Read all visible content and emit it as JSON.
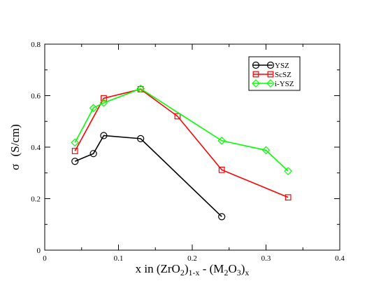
{
  "chart_data": {
    "type": "line",
    "title": "",
    "xlabel": {
      "main": "x in (ZrO",
      "sub1": "2",
      "mid1": ")",
      "sub2": "1-x",
      "mid2": " - (M",
      "sub3": "2",
      "mid3": "O",
      "sub4": "3",
      "mid4": ")",
      "sub5": "x"
    },
    "ylabel": {
      "symbol": "σ",
      "unit": "(S/cm)"
    },
    "xlim": [
      0,
      0.4
    ],
    "ylim": [
      0,
      0.8
    ],
    "xticks": [
      "0",
      "0.1",
      "0.2",
      "0.3",
      "0.4"
    ],
    "yticks": [
      "0",
      "0.2",
      "0.4",
      "0.6",
      "0.8"
    ],
    "grid": false,
    "legend_position": "top-right",
    "series": [
      {
        "name": "YSZ",
        "color": "#000000",
        "marker": "circle",
        "x": [
          0.041,
          0.066,
          0.08,
          0.13,
          0.24
        ],
        "y": [
          0.345,
          0.375,
          0.445,
          0.433,
          0.13
        ]
      },
      {
        "name": "ScSZ",
        "color": "#ff0000",
        "marker": "square",
        "x": [
          0.041,
          0.08,
          0.13,
          0.18,
          0.24,
          0.33
        ],
        "y": [
          0.385,
          0.59,
          0.625,
          0.52,
          0.312,
          0.205
        ]
      },
      {
        "name": "i-YSZ",
        "color": "#00ff00",
        "marker": "diamond",
        "x": [
          0.041,
          0.066,
          0.08,
          0.13,
          0.24,
          0.3,
          0.33
        ],
        "y": [
          0.418,
          0.552,
          0.572,
          0.627,
          0.425,
          0.388,
          0.307
        ]
      }
    ]
  }
}
